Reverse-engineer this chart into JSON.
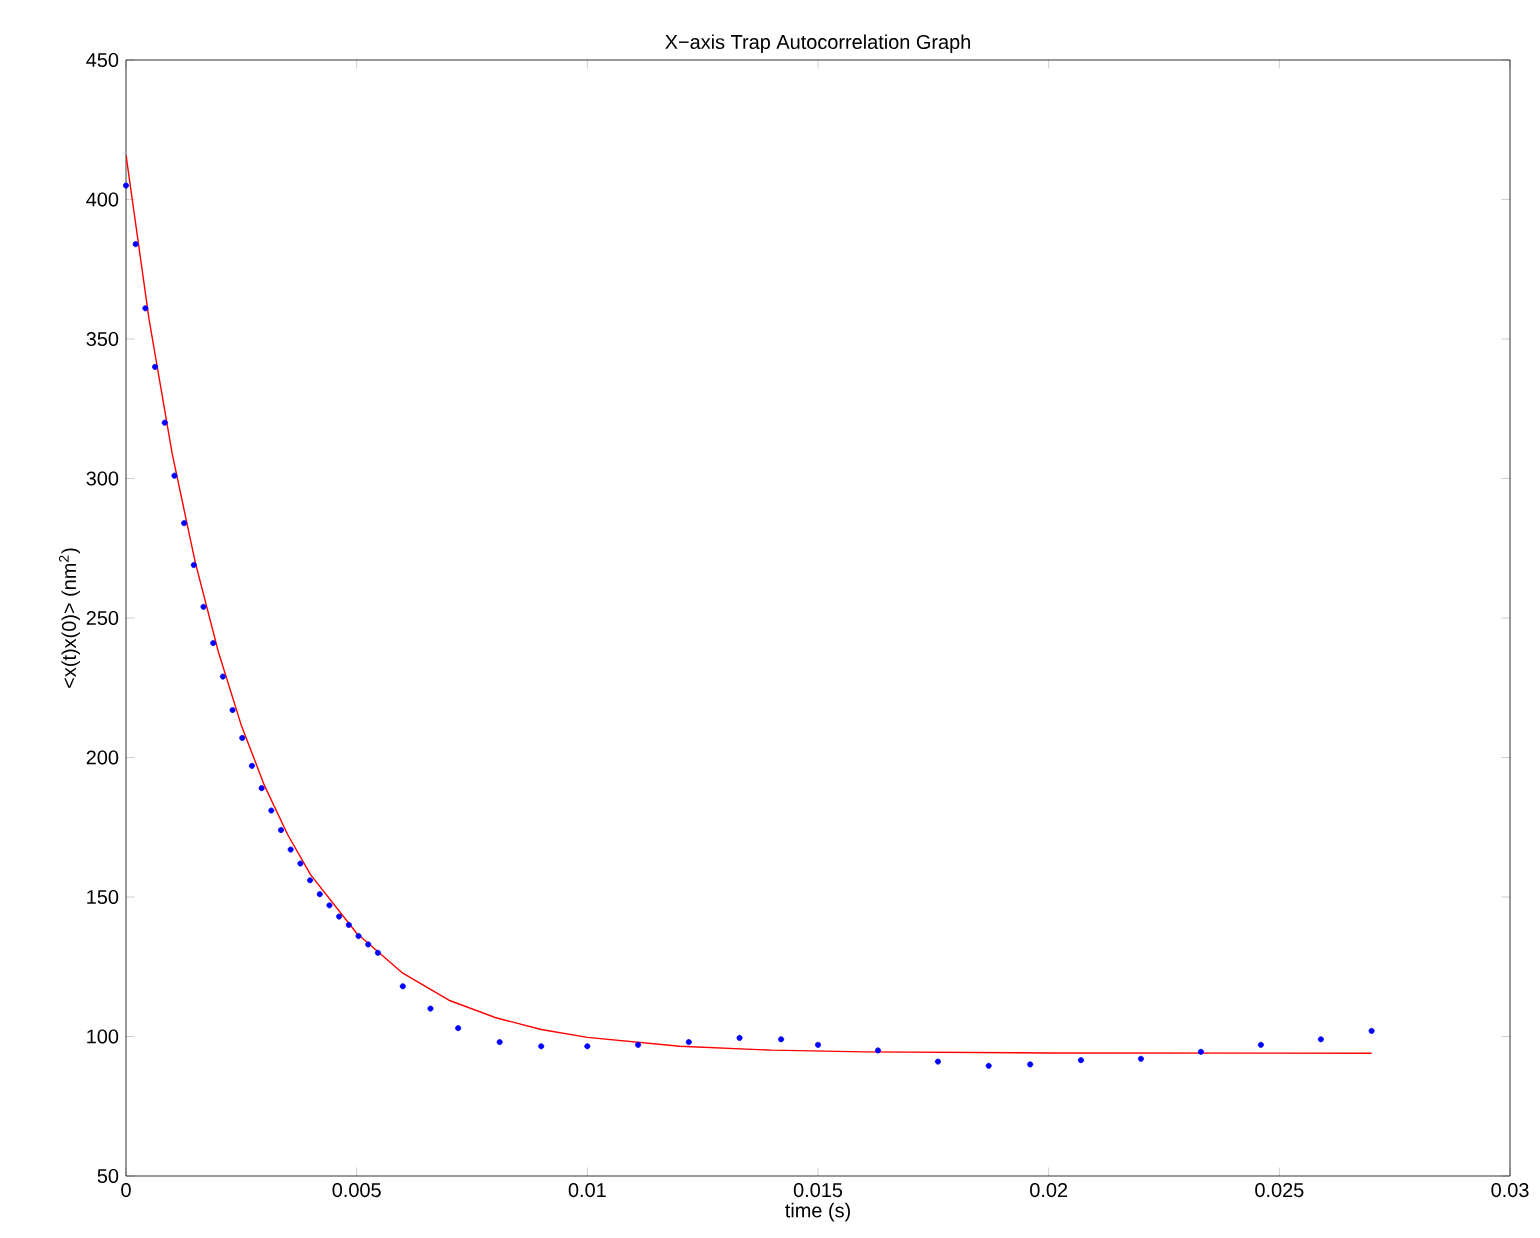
{
  "chart_data": {
    "type": "scatter",
    "title": "X−axis Trap Autocorrelation Graph",
    "xlabel": "time (s)",
    "ylabel": "<x(t)x(0)> (nm$^{2}$)",
    "xlim": [
      0,
      0.03
    ],
    "ylim": [
      50,
      450
    ],
    "xticks": [
      0,
      0.005,
      0.01,
      0.015,
      0.02,
      0.025,
      0.03
    ],
    "yticks": [
      50,
      100,
      150,
      200,
      250,
      300,
      350,
      400,
      450
    ],
    "grid": false,
    "series": [
      {
        "marker": "circle",
        "color": "#0000ff",
        "x": [
          0,
          0.00021,
          0.00042,
          0.00063,
          0.00084,
          0.00105,
          0.00126,
          0.00147,
          0.00168,
          0.00189,
          0.0021,
          0.00231,
          0.00252,
          0.00273,
          0.00294,
          0.00315,
          0.00336,
          0.00357,
          0.00378,
          0.00399,
          0.0042,
          0.00441,
          0.00462,
          0.00483,
          0.00504,
          0.00525,
          0.00546,
          0.006,
          0.0066,
          0.0072,
          0.0081,
          0.009,
          0.01,
          0.0111,
          0.0122,
          0.0133,
          0.0142,
          0.015,
          0.0163,
          0.0176,
          0.0187,
          0.0196,
          0.0207,
          0.022,
          0.0233,
          0.0246,
          0.0259,
          0.027
        ],
        "values": [
          405,
          384,
          361,
          340,
          320,
          301,
          284,
          269,
          254,
          241,
          229,
          217,
          207,
          197,
          189,
          181,
          174,
          167,
          162,
          156,
          151,
          147,
          143,
          140,
          136,
          133,
          130,
          118,
          110,
          103,
          98,
          96.5,
          96.5,
          97,
          98,
          99.5,
          99,
          97,
          95,
          91,
          89.5,
          90,
          91.5,
          92,
          94.5,
          97,
          99,
          102
        ]
      },
      {
        "type": "line",
        "marker": "none",
        "color": "#ff0000",
        "x": [
          0,
          0.0005,
          0.001,
          0.0015,
          0.002,
          0.0025,
          0.003,
          0.0035,
          0.004,
          0.005,
          0.006,
          0.007,
          0.008,
          0.009,
          0.01,
          0.012,
          0.014,
          0.016,
          0.02,
          0.027
        ],
        "values": [
          416,
          357,
          309,
          270,
          238,
          211.5,
          190,
          172.5,
          158,
          137,
          122.7,
          113,
          106.8,
          102.5,
          99.7,
          96.5,
          95.1,
          94.5,
          94.1,
          94
        ]
      }
    ]
  }
}
